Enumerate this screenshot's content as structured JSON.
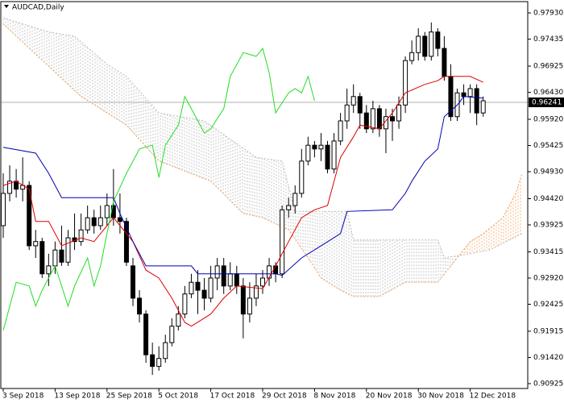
{
  "chart_data": {
    "type": "candlestick",
    "title": "AUDCAD,Daily",
    "categories": [
      "3 Sep 2018",
      null,
      null,
      null,
      null,
      null,
      null,
      null,
      "13 Sep 2018",
      null,
      null,
      null,
      null,
      null,
      null,
      null,
      "25 Sep 2018",
      null,
      null,
      null,
      null,
      null,
      null,
      null,
      "5 Oct 2018",
      null,
      null,
      null,
      null,
      null,
      null,
      null,
      "17 Oct 2018",
      null,
      null,
      null,
      null,
      null,
      null,
      null,
      "29 Oct 2018",
      null,
      null,
      null,
      null,
      null,
      null,
      null,
      "8 Nov 2018",
      null,
      null,
      null,
      null,
      null,
      null,
      null,
      "20 Nov 2018",
      null,
      null,
      null,
      null,
      null,
      null,
      null,
      "30 Nov 2018",
      null,
      null,
      null,
      null,
      null,
      null,
      null,
      "12 Dec 2018",
      null,
      null,
      null,
      null,
      null,
      null,
      null,
      null
    ],
    "open": [
      0.9391,
      0.9452,
      0.9475,
      0.946,
      0.9467,
      0.9353,
      0.9361,
      0.93,
      0.9315,
      0.9345,
      0.9322,
      0.9368,
      0.9361,
      0.9383,
      0.9406,
      0.9391,
      0.9406,
      0.9429,
      0.9406,
      0.9399,
      0.9315,
      0.9254,
      0.9224,
      0.9147,
      0.9125,
      0.914,
      0.917,
      0.9201,
      0.9224,
      0.9262,
      0.9284,
      0.9269,
      0.9254,
      0.9292,
      0.9315,
      0.9277,
      0.93,
      0.9277,
      0.9224,
      0.9254,
      0.9277,
      0.9292,
      0.9315,
      0.93,
      0.9421,
      0.9429,
      0.9452,
      0.9513,
      0.9543,
      0.9536,
      0.9543,
      0.9498,
      0.9551,
      0.9589,
      0.9619,
      0.9635,
      0.9604,
      0.9574,
      0.9612,
      0.9574,
      0.9597,
      0.9589,
      0.9619,
      0.9703,
      0.9718,
      0.9749,
      0.9711,
      0.9757,
      0.9726,
      0.9673,
      0.9597,
      0.9642,
      0.9635,
      0.965,
      0.9604,
      null,
      null,
      null,
      null,
      null,
      null
    ],
    "high": [
      0.949,
      0.9505,
      0.9498,
      0.952,
      0.9475,
      0.9383,
      0.9368,
      0.9338,
      0.9361,
      0.9391,
      0.9383,
      0.9414,
      0.9414,
      0.9429,
      0.9421,
      0.9429,
      0.9452,
      0.9498,
      0.9452,
      0.9406,
      0.933,
      0.9269,
      0.9231,
      0.917,
      0.9163,
      0.9185,
      0.9216,
      0.9239,
      0.9277,
      0.93,
      0.9307,
      0.9292,
      0.9315,
      0.933,
      0.933,
      0.9322,
      0.9315,
      0.9292,
      0.9284,
      0.93,
      0.9307,
      0.933,
      0.9322,
      0.9429,
      0.9444,
      0.9467,
      0.9536,
      0.9559,
      0.9551,
      0.9566,
      0.9551,
      0.9566,
      0.9604,
      0.965,
      0.9658,
      0.9642,
      0.9619,
      0.9627,
      0.9619,
      0.9612,
      0.9612,
      0.9635,
      0.9711,
      0.9741,
      0.9764,
      0.9757,
      0.9775,
      0.9764,
      0.9749,
      0.9696,
      0.965,
      0.9658,
      0.9658,
      0.9658,
      0.9635,
      null,
      null,
      null,
      null,
      null,
      null
    ],
    "low": [
      0.9368,
      0.9437,
      0.9444,
      0.9437,
      0.9345,
      0.933,
      0.9292,
      0.9277,
      0.93,
      0.9315,
      0.9315,
      0.9345,
      0.9353,
      0.9376,
      0.9376,
      0.9383,
      0.9391,
      0.9391,
      0.9376,
      0.9315,
      0.9239,
      0.9208,
      0.9132,
      0.9109,
      0.9117,
      0.9132,
      0.9163,
      0.9193,
      0.9216,
      0.9254,
      0.9224,
      0.9231,
      0.9246,
      0.9269,
      0.9262,
      0.9269,
      0.9262,
      0.9178,
      0.9208,
      0.9239,
      0.9262,
      0.9277,
      0.9284,
      0.9292,
      0.9406,
      0.9414,
      0.9444,
      0.9505,
      0.952,
      0.9513,
      0.949,
      0.949,
      0.9543,
      0.9574,
      0.9604,
      0.9574,
      0.9566,
      0.9566,
      0.9559,
      0.9528,
      0.9551,
      0.9574,
      0.9604,
      0.9696,
      0.9703,
      0.9703,
      0.9703,
      0.9711,
      0.9665,
      0.9589,
      0.9589,
      0.9619,
      0.9604,
      0.9581,
      0.9597,
      null,
      null,
      null,
      null,
      null,
      null
    ],
    "close": [
      0.9452,
      0.9475,
      0.946,
      0.9467,
      0.9353,
      0.9361,
      0.93,
      0.9315,
      0.9345,
      0.9322,
      0.9368,
      0.9361,
      0.9383,
      0.9406,
      0.9391,
      0.9406,
      0.9429,
      0.9406,
      0.9399,
      0.9322,
      0.9254,
      0.9224,
      0.9147,
      0.9125,
      0.914,
      0.917,
      0.9201,
      0.9224,
      0.9262,
      0.9284,
      0.9269,
      0.9254,
      0.9292,
      0.9315,
      0.9277,
      0.93,
      0.9277,
      0.9224,
      0.9254,
      0.9277,
      0.9292,
      0.9315,
      0.93,
      0.9421,
      0.9429,
      0.9452,
      0.9513,
      0.9543,
      0.9536,
      0.9543,
      0.9498,
      0.9551,
      0.9589,
      0.9619,
      0.9635,
      0.9604,
      0.9574,
      0.9612,
      0.9574,
      0.9597,
      0.9589,
      0.9619,
      0.9703,
      0.9718,
      0.9749,
      0.9711,
      0.9757,
      0.9726,
      0.9673,
      0.9597,
      0.9642,
      0.9635,
      0.965,
      0.9604,
      0.9627,
      null,
      null,
      null,
      null,
      null,
      null
    ],
    "lines": [
      {
        "color": "#dd0000",
        "x": [
          0,
          2,
          4,
          5,
          7,
          9,
          12,
          14,
          16,
          17,
          20,
          22,
          24,
          26,
          28,
          29,
          32,
          34,
          36,
          40,
          42,
          44,
          46,
          48,
          50,
          52,
          54,
          55,
          58,
          60,
          62,
          65,
          67,
          68,
          72,
          74
        ],
        "values": [
          0.9467,
          0.9475,
          0.946,
          0.9399,
          0.9399,
          0.9353,
          0.9368,
          0.9361,
          0.9391,
          0.9406,
          0.9361,
          0.9307,
          0.9292,
          0.9254,
          0.9208,
          0.9201,
          0.9224,
          0.9254,
          0.9277,
          0.9272,
          0.9315,
          0.9361,
          0.9406,
          0.9421,
          0.9429,
          0.952,
          0.9559,
          0.9581,
          0.9574,
          0.9604,
          0.9642,
          0.9658,
          0.9665,
          0.9673,
          0.9673,
          0.9662
        ]
      },
      {
        "color": "#0000b0",
        "x": [
          0,
          5,
          7,
          9,
          17,
          18,
          20,
          22,
          29,
          30,
          42,
          43,
          46,
          49,
          52,
          53,
          60,
          62,
          63,
          65,
          67,
          68,
          70,
          71,
          74
        ],
        "values": [
          0.9539,
          0.9528,
          0.949,
          0.9444,
          0.9444,
          0.9414,
          0.9361,
          0.9315,
          0.9315,
          0.93,
          0.93,
          0.9297,
          0.933,
          0.9353,
          0.9376,
          0.9418,
          0.9421,
          0.9452,
          0.9475,
          0.9513,
          0.9536,
          0.9597,
          0.9619,
          0.9635,
          0.9632
        ]
      },
      {
        "color": "#22dd22",
        "x": [
          0,
          2,
          4,
          5,
          6,
          8,
          10,
          11,
          13,
          14,
          15,
          16,
          17,
          19,
          21,
          23,
          24,
          25,
          27,
          28,
          29,
          31,
          32,
          34,
          35,
          37,
          39,
          40,
          41,
          42,
          44,
          45,
          46,
          47,
          48
        ],
        "values": [
          0.9193,
          0.9284,
          0.9277,
          0.9239,
          0.9269,
          0.9315,
          0.9239,
          0.9277,
          0.933,
          0.9277,
          0.9315,
          0.9376,
          0.9437,
          0.949,
          0.9536,
          0.9543,
          0.9482,
          0.9543,
          0.9581,
          0.9635,
          0.9612,
          0.9566,
          0.9574,
          0.9612,
          0.9673,
          0.9718,
          0.9711,
          0.9726,
          0.968,
          0.9604,
          0.9642,
          0.965,
          0.9642,
          0.9673,
          0.9627
        ]
      }
    ],
    "cloud": [
      {
        "color": "#f4a460",
        "style": "dotted",
        "x": [
          0,
          12,
          16,
          19,
          24,
          32,
          37,
          40,
          44,
          47,
          49,
          52,
          54,
          58,
          62,
          67,
          69,
          72,
          74,
          77,
          79,
          80
        ],
        "values": [
          0.9772,
          0.9635,
          0.9604,
          0.9581,
          0.9513,
          0.9475,
          0.9414,
          0.9406,
          0.9383,
          0.933,
          0.9292,
          0.9269,
          0.9257,
          0.9257,
          0.9284,
          0.9284,
          0.9315,
          0.9361,
          0.9376,
          0.9406,
          0.9452,
          0.949
        ]
      },
      {
        "color": "#b8b8b8",
        "style": "dotted",
        "x": [
          0,
          3,
          7,
          11,
          16,
          19,
          24,
          31,
          39,
          43,
          45,
          53,
          54,
          67,
          68,
          72,
          75,
          80
        ],
        "values": [
          0.9784,
          0.9772,
          0.9757,
          0.9749,
          0.9696,
          0.9673,
          0.9604,
          0.9589,
          0.952,
          0.9513,
          0.9418,
          0.9418,
          0.9364,
          0.9364,
          0.933,
          0.9338,
          0.9345,
          0.9376
        ]
      }
    ],
    "current_price": 0.96241,
    "ylim": [
      0.90833,
      0.98144
    ],
    "yticks": [
      {
        "value": 0.9793,
        "label": "0.97930"
      },
      0.97435,
      0.96925,
      {
        "value": 0.9643,
        "label": "0.96430"
      },
      {
        "value": 0.9592,
        "label": "0.95920"
      },
      0.95425,
      {
        "value": 0.9493,
        "label": "0.94930"
      },
      {
        "value": 0.9442,
        "label": "0.94420"
      },
      0.93925,
      0.93415,
      {
        "value": 0.9292,
        "label": "0.92920"
      },
      0.92425,
      0.91915,
      {
        "value": 0.9142,
        "label": "0.91420"
      },
      0.90925
    ]
  }
}
